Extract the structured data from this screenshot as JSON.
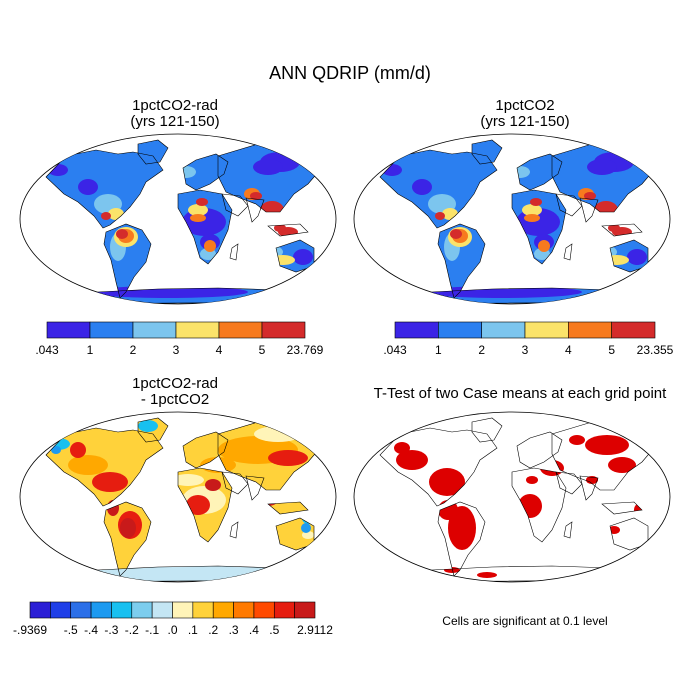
{
  "title": "ANN QDRIP (mm/d)",
  "colors": {
    "land_outline": "#000000",
    "ocean": "#ffffff",
    "significant": "#dd0000",
    "abs_levels": [
      "#3b24e6",
      "#2b7ff0",
      "#7cc5ee",
      "#fbe36a",
      "#f77a1e",
      "#d42b2b"
    ],
    "diff_levels": [
      "#2b1fd6",
      "#1f3fe8",
      "#2b6fe8",
      "#1d9af0",
      "#18c0f0",
      "#7ccdee",
      "#c4e6f4",
      "#fff4b8",
      "#ffd23a",
      "#ffa800",
      "#ff7a00",
      "#ff4a00",
      "#e61d10",
      "#c81a1a"
    ]
  },
  "panels": [
    {
      "id": "p1",
      "title_line1": "1pctCO2-rad",
      "title_line2": "(yrs 121-150)",
      "type": "absolute",
      "colorbar": {
        "labels": [
          ".043",
          "1",
          "2",
          "3",
          "4",
          "5",
          "23.769"
        ]
      }
    },
    {
      "id": "p2",
      "title_line1": "1pctCO2",
      "title_line2": "(yrs 121-150)",
      "type": "absolute",
      "colorbar": {
        "labels": [
          ".043",
          "1",
          "2",
          "3",
          "4",
          "5",
          "23.355"
        ]
      }
    },
    {
      "id": "p3",
      "title_line1": "1pctCO2-rad",
      "title_line2": "- 1pctCO2",
      "type": "difference",
      "colorbar": {
        "labels": [
          "-.9369",
          "-.5",
          "-.4",
          "-.3",
          "-.2",
          "-.1",
          ".0",
          ".1",
          ".2",
          ".3",
          ".4",
          ".5",
          "2.9112"
        ]
      }
    },
    {
      "id": "p4",
      "title_line1": "T-Test of two Case means at each grid point",
      "title_line2": "",
      "type": "ttest",
      "note": "Cells are significant at 0.1 level"
    }
  ]
}
